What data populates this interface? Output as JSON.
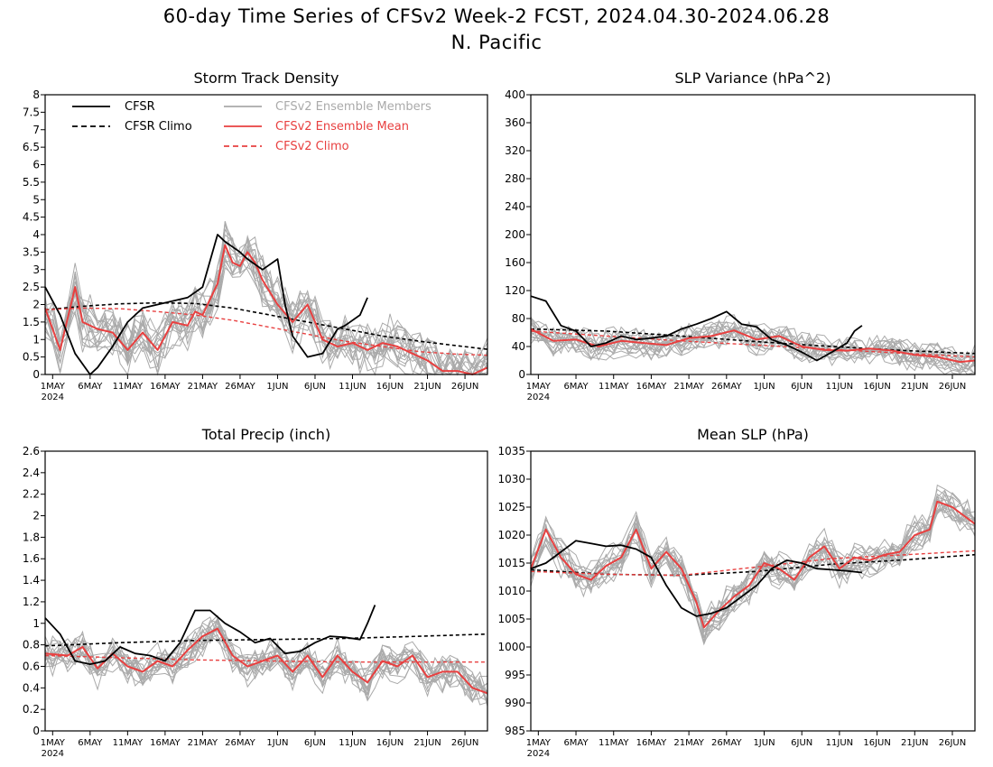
{
  "page": {
    "title_line1": "60-day Time Series of CFSv2 Week-2 FCST, 2024.04.30-2024.06.28",
    "title_line2": "N. Pacific"
  },
  "legend": {
    "entries": [
      {
        "label": "CFSR",
        "color": "#000000",
        "dashed": false
      },
      {
        "label": "CFSR Climo",
        "color": "#000000",
        "dashed": true
      },
      {
        "label": "CFSv2 Ensemble Members",
        "color": "#aaaaaa",
        "dashed": false
      },
      {
        "label": "CFSv2 Ensemble Mean",
        "color": "#e84040",
        "dashed": false
      },
      {
        "label": "CFSv2 Climo",
        "color": "#e84040",
        "dashed": true
      }
    ]
  },
  "colors": {
    "cfsr": "#000000",
    "members": "#aaaaaa",
    "ens_mean": "#e84040",
    "cfsv2_climo": "#e84040"
  },
  "chart_data": [
    {
      "type": "line",
      "title": "Storm Track Density",
      "x": {
        "start": "2024-04-30",
        "end": "2024-06-28",
        "ticks": [
          "1MAY",
          "6MAY",
          "11MAY",
          "16MAY",
          "21MAY",
          "26MAY",
          "1JUN",
          "6JUN",
          "11JUN",
          "16JUN",
          "21JUN",
          "26JUN"
        ],
        "year_label": "2024"
      },
      "ylim": [
        0,
        8
      ],
      "yticks": [
        "0",
        "0.5",
        "1",
        "1.5",
        "2",
        "2.5",
        "3",
        "3.5",
        "4",
        "4.5",
        "5",
        "5.5",
        "6",
        "6.5",
        "7",
        "7.5",
        "8"
      ],
      "member_spread": 0.55,
      "series": [
        {
          "name": "CFSR",
          "x": [
            0,
            2,
            4,
            6,
            7,
            9,
            11,
            13,
            15,
            17,
            19,
            21,
            23,
            24,
            26,
            27,
            29,
            31,
            32,
            33,
            35,
            37,
            39,
            40,
            42,
            43
          ],
          "values": [
            2.5,
            1.7,
            0.6,
            0.0,
            0.2,
            0.8,
            1.5,
            1.9,
            2.0,
            2.1,
            2.2,
            2.5,
            4.0,
            3.8,
            3.5,
            3.3,
            3.0,
            3.3,
            2.0,
            1.1,
            0.5,
            0.6,
            1.3,
            1.4,
            1.7,
            2.2
          ]
        },
        {
          "name": "CFSR Climo",
          "x": [
            0,
            5,
            10,
            15,
            20,
            25,
            30,
            35,
            40,
            45,
            50,
            55,
            59
          ],
          "values": [
            1.85,
            1.95,
            2.02,
            2.05,
            2.03,
            1.9,
            1.7,
            1.5,
            1.3,
            1.1,
            0.95,
            0.82,
            0.72
          ]
        },
        {
          "name": "CFSv2 Ensemble Mean",
          "x": [
            0,
            2,
            4,
            5,
            7,
            9,
            11,
            13,
            15,
            17,
            19,
            20,
            21,
            23,
            24,
            25,
            26,
            27,
            28,
            29,
            31,
            33,
            35,
            37,
            39,
            41,
            43,
            45,
            47,
            49,
            51,
            53,
            55,
            57,
            59
          ],
          "values": [
            1.9,
            0.7,
            2.5,
            1.5,
            1.3,
            1.2,
            0.7,
            1.2,
            0.7,
            1.5,
            1.4,
            1.8,
            1.7,
            2.6,
            3.7,
            3.2,
            3.1,
            3.5,
            3.2,
            2.7,
            2.0,
            1.5,
            2.0,
            1.0,
            0.8,
            0.9,
            0.7,
            0.9,
            0.8,
            0.6,
            0.4,
            0.1,
            0.1,
            0.0,
            0.2
          ]
        },
        {
          "name": "CFSv2 Climo",
          "x": [
            0,
            5,
            10,
            15,
            20,
            25,
            30,
            35,
            40,
            45,
            50,
            55,
            59
          ],
          "values": [
            1.85,
            1.9,
            1.88,
            1.8,
            1.7,
            1.55,
            1.35,
            1.15,
            0.95,
            0.8,
            0.65,
            0.58,
            0.55
          ]
        }
      ]
    },
    {
      "type": "line",
      "title": "SLP Variance (hPa^2)",
      "x": {
        "start": "2024-04-30",
        "end": "2024-06-28",
        "ticks": [
          "1MAY",
          "6MAY",
          "11MAY",
          "16MAY",
          "21MAY",
          "26MAY",
          "1JUN",
          "6JUN",
          "11JUN",
          "16JUN",
          "21JUN",
          "26JUN"
        ],
        "year_label": "2024"
      },
      "ylim": [
        0,
        400
      ],
      "yticks": [
        "0",
        "40",
        "80",
        "120",
        "160",
        "200",
        "240",
        "280",
        "320",
        "360",
        "400"
      ],
      "member_spread": 14,
      "series": [
        {
          "name": "CFSR",
          "x": [
            0,
            2,
            4,
            6,
            8,
            10,
            12,
            14,
            16,
            18,
            20,
            22,
            24,
            26,
            28,
            30,
            32,
            34,
            36,
            38,
            40,
            42,
            43,
            44
          ],
          "values": [
            112,
            105,
            70,
            62,
            40,
            45,
            55,
            50,
            52,
            55,
            65,
            72,
            80,
            90,
            72,
            68,
            50,
            42,
            32,
            20,
            32,
            45,
            62,
            70
          ]
        },
        {
          "name": "CFSR Climo",
          "x": [
            0,
            10,
            20,
            30,
            40,
            50,
            59
          ],
          "values": [
            65,
            62,
            55,
            47,
            40,
            34,
            30
          ]
        },
        {
          "name": "CFSv2 Ensemble Mean",
          "x": [
            0,
            3,
            6,
            9,
            12,
            15,
            18,
            21,
            24,
            27,
            30,
            33,
            36,
            39,
            42,
            45,
            48,
            51,
            54,
            57,
            59
          ],
          "values": [
            65,
            48,
            50,
            40,
            48,
            45,
            42,
            52,
            55,
            63,
            50,
            55,
            40,
            35,
            34,
            37,
            34,
            28,
            25,
            18,
            20
          ]
        },
        {
          "name": "CFSv2 Climo",
          "x": [
            0,
            10,
            20,
            30,
            40,
            50,
            59
          ],
          "values": [
            62,
            55,
            48,
            42,
            36,
            30,
            25
          ]
        }
      ]
    },
    {
      "type": "line",
      "title": "Total Precip (inch)",
      "x": {
        "start": "2024-04-30",
        "end": "2024-06-28",
        "ticks": [
          "1MAY",
          "6MAY",
          "11MAY",
          "16MAY",
          "21MAY",
          "26MAY",
          "1JUN",
          "6JUN",
          "11JUN",
          "16JUN",
          "21JUN",
          "26JUN"
        ],
        "year_label": "2024"
      },
      "ylim": [
        0,
        2.6
      ],
      "yticks": [
        "0",
        "0.2",
        "0.4",
        "0.6",
        "0.8",
        "1",
        "1.2",
        "1.4",
        "1.6",
        "1.8",
        "2",
        "2.2",
        "2.4",
        "2.6"
      ],
      "member_spread": 0.12,
      "series": [
        {
          "name": "CFSR",
          "x": [
            0,
            2,
            4,
            6,
            8,
            10,
            12,
            14,
            16,
            18,
            20,
            22,
            24,
            26,
            28,
            30,
            32,
            34,
            36,
            38,
            40,
            42,
            43,
            44
          ],
          "values": [
            1.05,
            0.9,
            0.65,
            0.62,
            0.65,
            0.78,
            0.72,
            0.7,
            0.65,
            0.82,
            1.12,
            1.12,
            1.0,
            0.92,
            0.82,
            0.86,
            0.72,
            0.74,
            0.82,
            0.88,
            0.87,
            0.85,
            1.0,
            1.17
          ]
        },
        {
          "name": "CFSR Climo",
          "x": [
            0,
            10,
            20,
            30,
            40,
            50,
            59
          ],
          "values": [
            0.79,
            0.82,
            0.84,
            0.85,
            0.86,
            0.88,
            0.9
          ]
        },
        {
          "name": "CFSv2 Ensemble Mean",
          "x": [
            0,
            3,
            5,
            7,
            9,
            11,
            13,
            15,
            17,
            19,
            21,
            23,
            25,
            27,
            29,
            31,
            33,
            35,
            37,
            39,
            41,
            43,
            45,
            47,
            49,
            51,
            53,
            55,
            57,
            59
          ],
          "values": [
            0.72,
            0.7,
            0.78,
            0.58,
            0.72,
            0.6,
            0.55,
            0.65,
            0.6,
            0.75,
            0.88,
            0.95,
            0.7,
            0.6,
            0.65,
            0.7,
            0.55,
            0.7,
            0.5,
            0.7,
            0.55,
            0.45,
            0.65,
            0.6,
            0.7,
            0.5,
            0.55,
            0.55,
            0.4,
            0.35
          ]
        },
        {
          "name": "CFSv2 Climo",
          "x": [
            0,
            10,
            20,
            30,
            40,
            50,
            59
          ],
          "values": [
            0.7,
            0.68,
            0.66,
            0.65,
            0.64,
            0.64,
            0.64
          ]
        }
      ]
    },
    {
      "type": "line",
      "title": "Mean SLP (hPa)",
      "x": {
        "start": "2024-04-30",
        "end": "2024-06-28",
        "ticks": [
          "1MAY",
          "6MAY",
          "11MAY",
          "16MAY",
          "21MAY",
          "26MAY",
          "1JUN",
          "6JUN",
          "11JUN",
          "16JUN",
          "21JUN",
          "26JUN"
        ],
        "year_label": "2024"
      },
      "ylim": [
        985,
        1035
      ],
      "yticks": [
        "985",
        "990",
        "995",
        "1000",
        "1005",
        "1010",
        "1015",
        "1020",
        "1025",
        "1030",
        "1035"
      ],
      "member_spread": 2.2,
      "series": [
        {
          "name": "CFSR",
          "x": [
            0,
            2,
            4,
            6,
            8,
            10,
            12,
            14,
            16,
            18,
            20,
            22,
            24,
            26,
            28,
            30,
            32,
            34,
            36,
            38,
            40,
            42,
            44
          ],
          "values": [
            1014,
            1015,
            1017,
            1019,
            1018.5,
            1018,
            1018.2,
            1017.5,
            1016,
            1011,
            1007,
            1005.5,
            1006,
            1007,
            1009,
            1011,
            1014,
            1015.5,
            1015,
            1014,
            1013.8,
            1013.6,
            1013.3
          ]
        },
        {
          "name": "CFSR Climo",
          "x": [
            0,
            10,
            20,
            30,
            40,
            50,
            59
          ],
          "values": [
            1013.8,
            1013,
            1012.8,
            1013.5,
            1014.8,
            1015.6,
            1016.5
          ]
        },
        {
          "name": "CFSv2 Ensemble Mean",
          "x": [
            0,
            2,
            4,
            6,
            8,
            10,
            12,
            14,
            16,
            18,
            20,
            22,
            23,
            25,
            27,
            29,
            31,
            33,
            35,
            37,
            39,
            41,
            43,
            45,
            47,
            49,
            51,
            53,
            54,
            56,
            58,
            59
          ],
          "values": [
            1014,
            1021,
            1016,
            1013,
            1012,
            1014.5,
            1016,
            1021,
            1014,
            1017,
            1014,
            1008,
            1003.5,
            1006.5,
            1009,
            1011,
            1015,
            1014,
            1012,
            1016,
            1018,
            1014,
            1016,
            1015.5,
            1016.5,
            1017,
            1020,
            1021,
            1026,
            1025,
            1023,
            1022
          ]
        },
        {
          "name": "CFSv2 Climo",
          "x": [
            0,
            10,
            20,
            30,
            40,
            50,
            59
          ],
          "values": [
            1013.5,
            1013,
            1012.8,
            1014.3,
            1015.8,
            1016.5,
            1017.2
          ]
        }
      ]
    }
  ]
}
